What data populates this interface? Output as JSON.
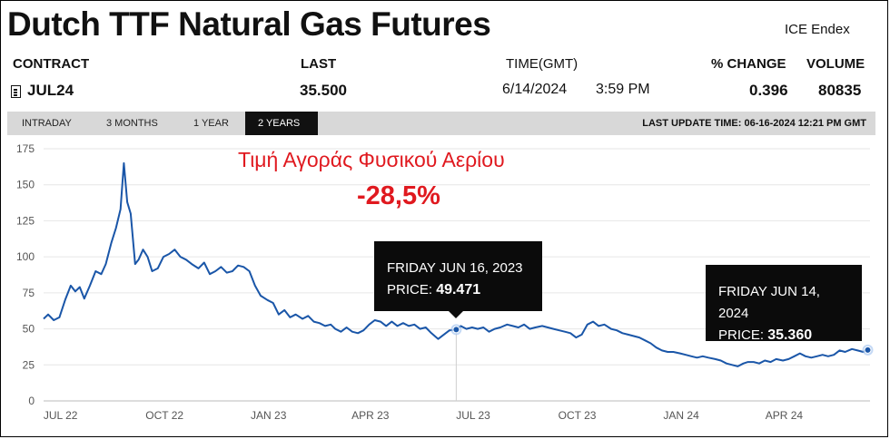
{
  "title": "Dutch TTF Natural Gas Futures",
  "exchange": "ICE Endex",
  "headers": {
    "contract": "CONTRACT",
    "last": "LAST",
    "time": "TIME(GMT)",
    "pct_change": "% CHANGE",
    "volume": "VOLUME"
  },
  "values": {
    "contract": "JUL24",
    "last": "35.500",
    "date": "6/14/2024",
    "time": "3:59 PM",
    "pct_change": "0.396",
    "volume": "80835"
  },
  "tabs": [
    {
      "label": "INTRADAY"
    },
    {
      "label": "3 MONTHS"
    },
    {
      "label": "1 YEAR"
    },
    {
      "label": "2 YEARS"
    }
  ],
  "active_tab": "2 YEARS",
  "last_update": "LAST UPDATE TIME: 06-16-2024 12:21 PM GMT",
  "annotation": {
    "title": "Τιμή Αγοράς Φυσικού Αερίου",
    "change": "-28,5%"
  },
  "tooltips": [
    {
      "date": "FRIDAY JUN 16, 2023",
      "price_label": "PRICE:",
      "price": "49.471"
    },
    {
      "date": "FRIDAY JUN 14, 2024",
      "price_label": "PRICE:",
      "price": "35.360"
    }
  ],
  "colors": {
    "line": "#1a56a8",
    "annotation": "#e0191f",
    "tooltip_bg": "#0b0b0b",
    "tabbar": "#d8d8d8"
  },
  "chart_data": {
    "type": "line",
    "x_unit": "month",
    "xlim": [
      "2022-06-16",
      "2024-06-16"
    ],
    "ylim": [
      0,
      175
    ],
    "y_ticks": [
      0,
      25,
      50,
      75,
      100,
      125,
      150,
      175
    ],
    "x_ticks": [
      {
        "date": "2022-07-01",
        "label": "JUL 22"
      },
      {
        "date": "2022-10-01",
        "label": "OCT 22"
      },
      {
        "date": "2023-01-01",
        "label": "JAN 23"
      },
      {
        "date": "2023-04-01",
        "label": "APR 23"
      },
      {
        "date": "2023-07-01",
        "label": "JUL 23"
      },
      {
        "date": "2023-10-01",
        "label": "OCT 23"
      },
      {
        "date": "2024-01-01",
        "label": "JAN 24"
      },
      {
        "date": "2024-04-01",
        "label": "APR 24"
      }
    ],
    "grid": "horizontal",
    "series": [
      {
        "points": [
          [
            "2022-06-16",
            57
          ],
          [
            "2022-06-20",
            60
          ],
          [
            "2022-06-25",
            56
          ],
          [
            "2022-06-30",
            58
          ],
          [
            "2022-07-05",
            70
          ],
          [
            "2022-07-10",
            80
          ],
          [
            "2022-07-14",
            76
          ],
          [
            "2022-07-18",
            79
          ],
          [
            "2022-07-22",
            71
          ],
          [
            "2022-07-27",
            80
          ],
          [
            "2022-08-01",
            90
          ],
          [
            "2022-08-06",
            88
          ],
          [
            "2022-08-10",
            95
          ],
          [
            "2022-08-15",
            110
          ],
          [
            "2022-08-19",
            120
          ],
          [
            "2022-08-23",
            133
          ],
          [
            "2022-08-26",
            165
          ],
          [
            "2022-08-29",
            138
          ],
          [
            "2022-09-01",
            130
          ],
          [
            "2022-09-05",
            95
          ],
          [
            "2022-09-08",
            98
          ],
          [
            "2022-09-12",
            105
          ],
          [
            "2022-09-16",
            100
          ],
          [
            "2022-09-20",
            90
          ],
          [
            "2022-09-25",
            92
          ],
          [
            "2022-09-30",
            100
          ],
          [
            "2022-10-05",
            102
          ],
          [
            "2022-10-10",
            105
          ],
          [
            "2022-10-15",
            100
          ],
          [
            "2022-10-20",
            98
          ],
          [
            "2022-10-25",
            95
          ],
          [
            "2022-10-31",
            92
          ],
          [
            "2022-11-05",
            96
          ],
          [
            "2022-11-10",
            88
          ],
          [
            "2022-11-15",
            90
          ],
          [
            "2022-11-20",
            93
          ],
          [
            "2022-11-25",
            89
          ],
          [
            "2022-11-30",
            90
          ],
          [
            "2022-12-05",
            94
          ],
          [
            "2022-12-10",
            93
          ],
          [
            "2022-12-15",
            90
          ],
          [
            "2022-12-20",
            80
          ],
          [
            "2022-12-25",
            73
          ],
          [
            "2022-12-31",
            70
          ],
          [
            "2023-01-05",
            68
          ],
          [
            "2023-01-10",
            60
          ],
          [
            "2023-01-15",
            63
          ],
          [
            "2023-01-20",
            58
          ],
          [
            "2023-01-25",
            60
          ],
          [
            "2023-01-31",
            57
          ],
          [
            "2023-02-05",
            59
          ],
          [
            "2023-02-10",
            55
          ],
          [
            "2023-02-15",
            54
          ],
          [
            "2023-02-20",
            52
          ],
          [
            "2023-02-25",
            53
          ],
          [
            "2023-03-01",
            50
          ],
          [
            "2023-03-06",
            48
          ],
          [
            "2023-03-11",
            51
          ],
          [
            "2023-03-16",
            48
          ],
          [
            "2023-03-21",
            47
          ],
          [
            "2023-03-26",
            49
          ],
          [
            "2023-03-31",
            53
          ],
          [
            "2023-04-05",
            56
          ],
          [
            "2023-04-10",
            55
          ],
          [
            "2023-04-15",
            52
          ],
          [
            "2023-04-20",
            55
          ],
          [
            "2023-04-25",
            52
          ],
          [
            "2023-04-30",
            54
          ],
          [
            "2023-05-05",
            52
          ],
          [
            "2023-05-10",
            53
          ],
          [
            "2023-05-15",
            50
          ],
          [
            "2023-05-20",
            51
          ],
          [
            "2023-05-25",
            47
          ],
          [
            "2023-05-31",
            43
          ],
          [
            "2023-06-05",
            46
          ],
          [
            "2023-06-10",
            49
          ],
          [
            "2023-06-16",
            49.47
          ],
          [
            "2023-06-20",
            52
          ],
          [
            "2023-06-25",
            50
          ],
          [
            "2023-06-30",
            51
          ],
          [
            "2023-07-05",
            50
          ],
          [
            "2023-07-10",
            51
          ],
          [
            "2023-07-15",
            48
          ],
          [
            "2023-07-20",
            50
          ],
          [
            "2023-07-25",
            51
          ],
          [
            "2023-07-31",
            53
          ],
          [
            "2023-08-05",
            52
          ],
          [
            "2023-08-10",
            51
          ],
          [
            "2023-08-15",
            53
          ],
          [
            "2023-08-20",
            50
          ],
          [
            "2023-08-25",
            51
          ],
          [
            "2023-08-31",
            52
          ],
          [
            "2023-09-05",
            51
          ],
          [
            "2023-09-10",
            50
          ],
          [
            "2023-09-15",
            49
          ],
          [
            "2023-09-20",
            48
          ],
          [
            "2023-09-25",
            47
          ],
          [
            "2023-09-30",
            44
          ],
          [
            "2023-10-05",
            46
          ],
          [
            "2023-10-10",
            53
          ],
          [
            "2023-10-15",
            55
          ],
          [
            "2023-10-20",
            52
          ],
          [
            "2023-10-25",
            53
          ],
          [
            "2023-10-31",
            50
          ],
          [
            "2023-11-05",
            49
          ],
          [
            "2023-11-10",
            47
          ],
          [
            "2023-11-15",
            46
          ],
          [
            "2023-11-20",
            45
          ],
          [
            "2023-11-25",
            44
          ],
          [
            "2023-11-30",
            42
          ],
          [
            "2023-12-05",
            40
          ],
          [
            "2023-12-10",
            37
          ],
          [
            "2023-12-15",
            35
          ],
          [
            "2023-12-20",
            34
          ],
          [
            "2023-12-25",
            34
          ],
          [
            "2023-12-31",
            33
          ],
          [
            "2024-01-05",
            32
          ],
          [
            "2024-01-10",
            31
          ],
          [
            "2024-01-15",
            30
          ],
          [
            "2024-01-20",
            31
          ],
          [
            "2024-01-25",
            30
          ],
          [
            "2024-01-31",
            29
          ],
          [
            "2024-02-05",
            28
          ],
          [
            "2024-02-10",
            26
          ],
          [
            "2024-02-15",
            25
          ],
          [
            "2024-02-20",
            24
          ],
          [
            "2024-02-25",
            26
          ],
          [
            "2024-02-29",
            27
          ],
          [
            "2024-03-05",
            27
          ],
          [
            "2024-03-10",
            26
          ],
          [
            "2024-03-15",
            28
          ],
          [
            "2024-03-20",
            27
          ],
          [
            "2024-03-25",
            29
          ],
          [
            "2024-03-31",
            28
          ],
          [
            "2024-04-05",
            29
          ],
          [
            "2024-04-10",
            31
          ],
          [
            "2024-04-15",
            33
          ],
          [
            "2024-04-20",
            31
          ],
          [
            "2024-04-25",
            30
          ],
          [
            "2024-04-30",
            31
          ],
          [
            "2024-05-05",
            32
          ],
          [
            "2024-05-10",
            31
          ],
          [
            "2024-05-15",
            32
          ],
          [
            "2024-05-20",
            35
          ],
          [
            "2024-05-25",
            34
          ],
          [
            "2024-05-31",
            36
          ],
          [
            "2024-06-05",
            35
          ],
          [
            "2024-06-10",
            34
          ],
          [
            "2024-06-14",
            35.36
          ]
        ]
      }
    ],
    "highlight_points": [
      {
        "date": "2023-06-16",
        "value": 49.471
      },
      {
        "date": "2024-06-14",
        "value": 35.36
      }
    ]
  }
}
